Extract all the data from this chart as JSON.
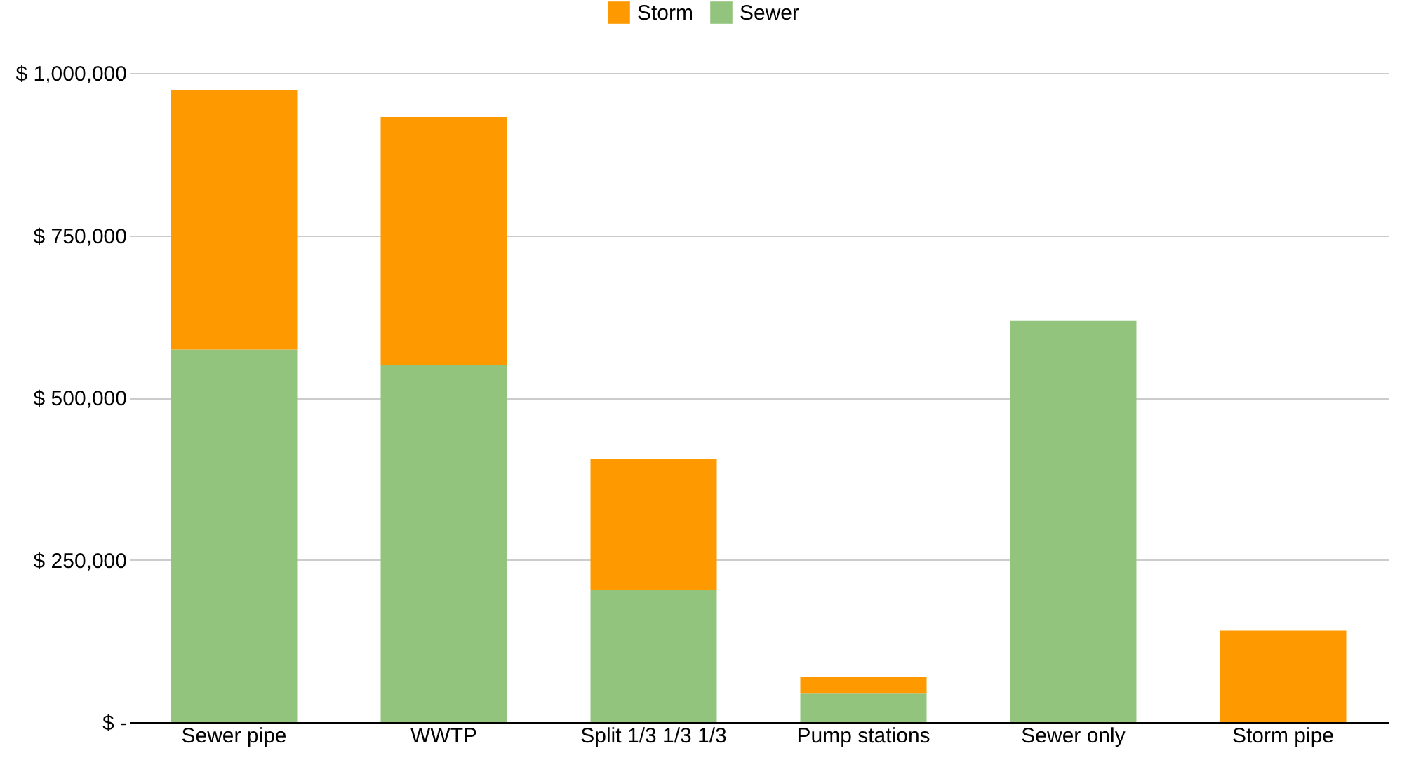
{
  "chart_data": {
    "type": "bar",
    "stacked": true,
    "categories": [
      "Sewer pipe",
      "WWTP",
      "Split 1/3 1/3 1/3",
      "Pump stations",
      "Sewer only",
      "Storm pipe"
    ],
    "series": [
      {
        "name": "Sewer",
        "color": "#93c47d",
        "values": [
          574000,
          550000,
          204000,
          44000,
          618000,
          null
        ]
      },
      {
        "name": "Storm",
        "color": "#ff9900",
        "values": [
          400000,
          382000,
          201000,
          26000,
          null,
          141000
        ]
      }
    ],
    "ylim": [
      0,
      1000000
    ],
    "yticks": [
      {
        "value": 0,
        "label": "$ -"
      },
      {
        "value": 250000,
        "label": "$ 250,000"
      },
      {
        "value": 500000,
        "label": "$ 500,000"
      },
      {
        "value": 750000,
        "label": "$ 750,000"
      },
      {
        "value": 1000000,
        "label": "$ 1,000,000"
      }
    ],
    "grid": "y",
    "legend": "top"
  }
}
